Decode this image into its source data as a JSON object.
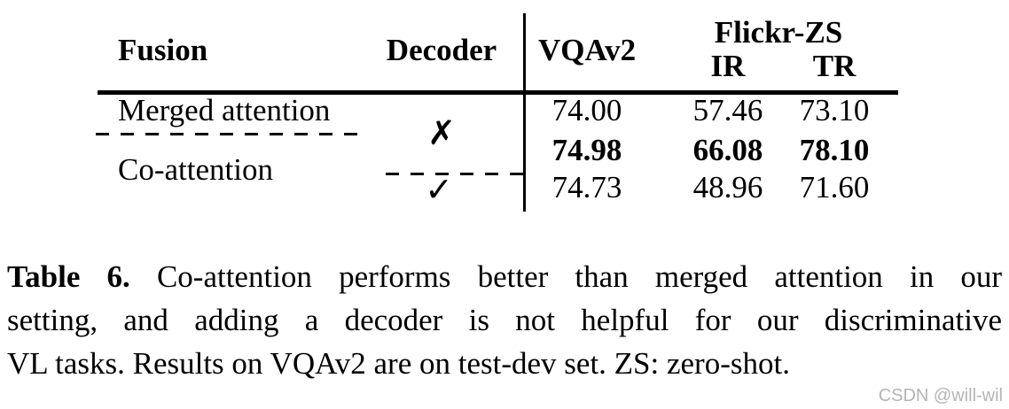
{
  "table": {
    "headers": {
      "fusion": "Fusion",
      "decoder": "Decoder",
      "vqav2": "VQAv2",
      "flickr_zs": "Flickr-ZS",
      "ir": "IR",
      "tr": "TR"
    },
    "marks": {
      "no_decoder": "✗",
      "with_decoder": "✓"
    },
    "rows": [
      {
        "fusion": "Merged attention",
        "decoder": "no",
        "vqav2": "74.00",
        "ir": "57.46",
        "tr": "73.10",
        "bold": false
      },
      {
        "fusion": "Co-attention",
        "decoder": "no",
        "vqav2": "74.98",
        "ir": "66.08",
        "tr": "78.10",
        "bold": true
      },
      {
        "fusion": "Co-attention",
        "decoder": "yes",
        "vqav2": "74.73",
        "ir": "48.96",
        "tr": "71.60",
        "bold": false
      }
    ]
  },
  "caption": {
    "label": "Table 6.",
    "line1_rest": "Co-attention performs better than merged attention in our",
    "line2": "setting, and adding a decoder is not helpful for our discriminative",
    "line3": "VL tasks. Results on VQAv2 are on test-dev set. ZS: zero-shot."
  },
  "watermark": "CSDN @will-wil",
  "colors": {
    "text": "#000000",
    "watermark": "#b4b4b4",
    "background": "#ffffff"
  }
}
